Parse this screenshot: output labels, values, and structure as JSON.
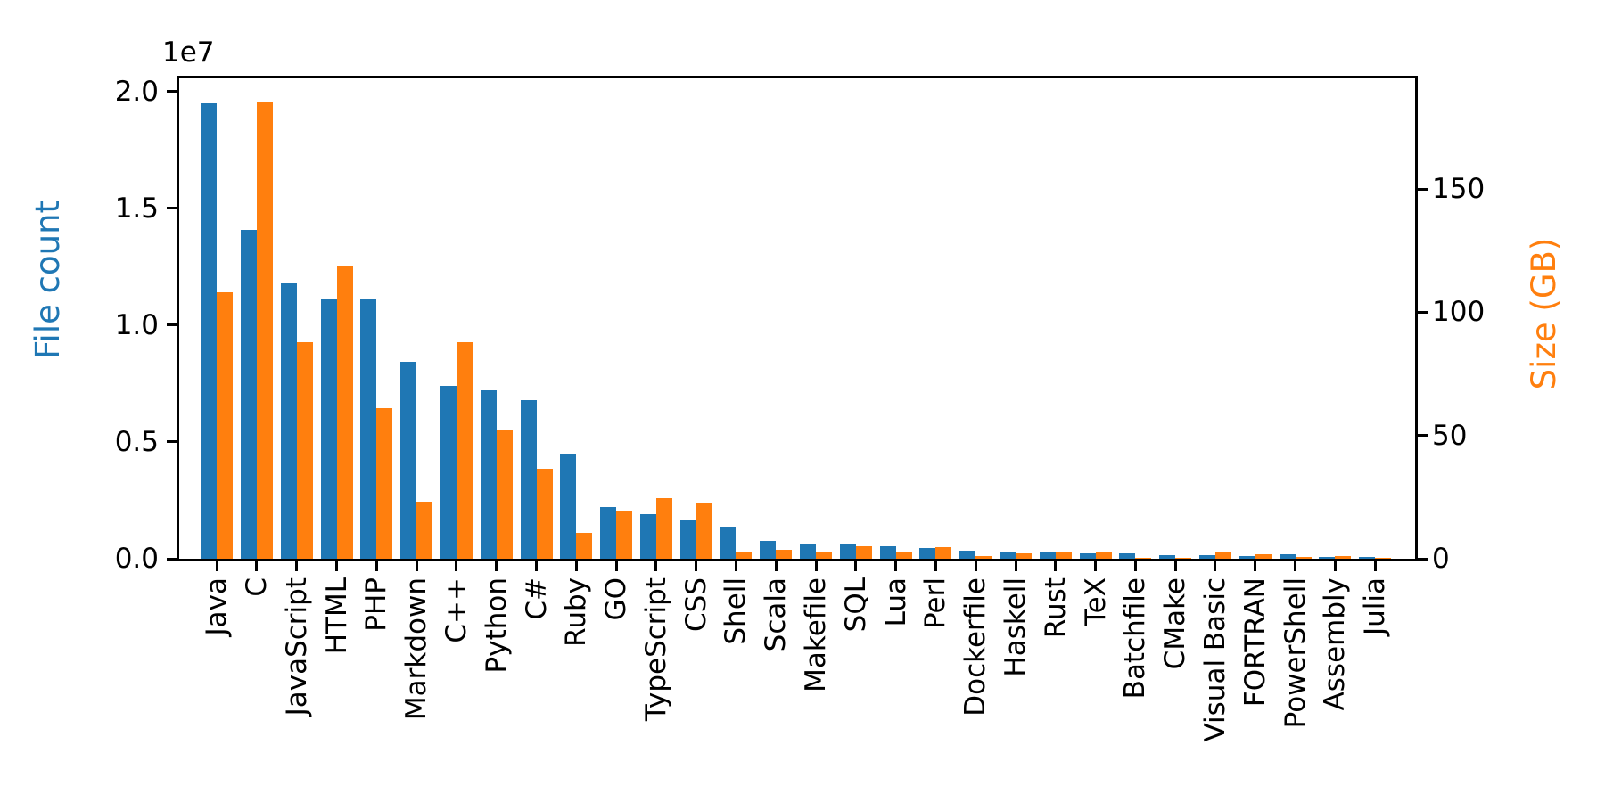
{
  "chart_data": {
    "type": "bar",
    "title": "",
    "legend": "none",
    "grid": false,
    "background": "#ffffff",
    "categories": [
      "Java",
      "C",
      "JavaScript",
      "HTML",
      "PHP",
      "Markdown",
      "C++",
      "Python",
      "C#",
      "Ruby",
      "GO",
      "TypeScript",
      "CSS",
      "Shell",
      "Scala",
      "Makefile",
      "SQL",
      "Lua",
      "Perl",
      "Dockerfile",
      "Haskell",
      "Rust",
      "TeX",
      "Batchfile",
      "CMake",
      "Visual Basic",
      "FORTRAN",
      "PowerShell",
      "Assembly",
      "Julia"
    ],
    "series": [
      {
        "name": "File count",
        "axis": "left",
        "color": "#1f77b4",
        "values": [
          19500000,
          14100000,
          11800000,
          11150000,
          11150000,
          8450000,
          7400000,
          7200000,
          6800000,
          4450000,
          2230000,
          1900000,
          1690000,
          1360000,
          760000,
          640000,
          630000,
          530000,
          470000,
          360000,
          320000,
          320000,
          220000,
          230000,
          170000,
          170000,
          130000,
          190000,
          90000,
          80000
        ]
      },
      {
        "name": "Size (GB)",
        "axis": "right",
        "color": "#ff7f0e",
        "values": [
          108,
          185,
          88,
          118.5,
          61,
          23,
          88,
          52,
          36.5,
          10.6,
          19,
          24.5,
          22.7,
          2.7,
          3.5,
          2.8,
          5.2,
          2.4,
          4.6,
          1.2,
          2.1,
          2.7,
          2.4,
          0.3,
          0.3,
          2.4,
          1.8,
          0.7,
          1.1,
          0.2
        ]
      }
    ],
    "left_axis": {
      "label": "File count",
      "color": "#1f77b4",
      "offset_text": "1e7",
      "tick_labels": [
        "0.0",
        "0.5",
        "1.0",
        "1.5",
        "2.0"
      ],
      "tick_values": [
        0,
        5000000,
        10000000,
        15000000,
        20000000
      ],
      "ylim": [
        0,
        20570000
      ]
    },
    "right_axis": {
      "label": "Size (GB)",
      "color": "#ff7f0e",
      "tick_labels": [
        "0",
        "50",
        "100",
        "150"
      ],
      "tick_values": [
        0,
        50,
        100,
        150
      ],
      "ylim": [
        0,
        194.9
      ]
    },
    "x_axis": {
      "label": "",
      "tick_label_rotation": 90
    }
  }
}
